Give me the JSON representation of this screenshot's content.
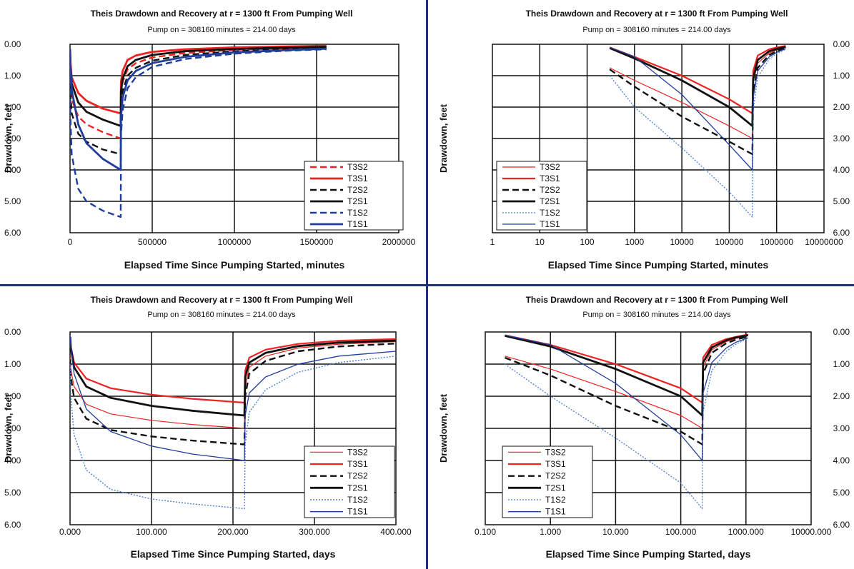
{
  "colors": {
    "red": "#ee2222",
    "black": "#111111",
    "blue": "#1f3d99",
    "lightblue": "#4a7fd8",
    "divider": "#1f2f78",
    "grid": "#111111"
  },
  "chart_data": [
    {
      "type": "line",
      "title": "Theis Drawdown and Recovery at r = 1300 ft From Pumping Well",
      "subtitle": "Pump on = 308160 minutes = 214.00 days",
      "xlabel": "Elapsed Time Since Pumping Started, minutes",
      "ylabel": "Drawdown, feet",
      "xscale": "linear",
      "xlim": [
        0,
        2000000
      ],
      "ylim": [
        0,
        6
      ],
      "y_inverted": true,
      "yaxis_side": "left",
      "xticks": [
        "0",
        "500000",
        "1000000",
        "1500000",
        "2000000"
      ],
      "yticks": [
        "0.00",
        "1.00",
        "2.00",
        "3.00",
        "4.00",
        "5.00",
        "6.00"
      ],
      "grid": true,
      "legend_position": "bottom-right",
      "series": [
        {
          "name": "T3S2",
          "color": "#ee2222",
          "dash": "dashed",
          "width": 2.4,
          "x": [
            300,
            2000,
            10000,
            50000,
            100000,
            200000,
            308160,
            310000,
            320000,
            350000,
            400000,
            500000,
            700000,
            1000000,
            1300000,
            1560000
          ],
          "y": [
            0.85,
            1.25,
            1.75,
            2.3,
            2.55,
            2.8,
            3.0,
            1.6,
            1.2,
            0.8,
            0.6,
            0.42,
            0.28,
            0.18,
            0.13,
            0.1
          ]
        },
        {
          "name": "T3S1",
          "color": "#ee2222",
          "dash": "solid",
          "width": 2.8,
          "x": [
            300,
            2000,
            10000,
            50000,
            100000,
            200000,
            308160,
            310000,
            320000,
            350000,
            400000,
            500000,
            700000,
            1000000,
            1300000,
            1560000
          ],
          "y": [
            0.2,
            0.55,
            1.05,
            1.55,
            1.8,
            2.05,
            2.2,
            1.2,
            0.85,
            0.5,
            0.36,
            0.24,
            0.16,
            0.1,
            0.07,
            0.05
          ]
        },
        {
          "name": "T2S2",
          "color": "#111111",
          "dash": "dashed",
          "width": 2.4,
          "x": [
            300,
            2000,
            10000,
            50000,
            100000,
            200000,
            308160,
            310000,
            320000,
            350000,
            400000,
            500000,
            700000,
            1000000,
            1300000,
            1560000
          ],
          "y": [
            0.9,
            1.5,
            2.2,
            2.85,
            3.1,
            3.35,
            3.5,
            2.0,
            1.5,
            1.0,
            0.75,
            0.52,
            0.34,
            0.22,
            0.16,
            0.12
          ]
        },
        {
          "name": "T2S1",
          "color": "#111111",
          "dash": "solid",
          "width": 2.8,
          "x": [
            300,
            2000,
            10000,
            50000,
            100000,
            200000,
            308160,
            310000,
            320000,
            350000,
            400000,
            500000,
            700000,
            1000000,
            1300000,
            1560000
          ],
          "y": [
            0.2,
            0.65,
            1.25,
            1.85,
            2.15,
            2.4,
            2.6,
            1.5,
            1.1,
            0.7,
            0.5,
            0.34,
            0.22,
            0.15,
            0.11,
            0.08
          ]
        },
        {
          "name": "T1S2",
          "color": "#1f3d99",
          "dash": "dashed",
          "width": 2.4,
          "x": [
            300,
            2000,
            10000,
            50000,
            100000,
            200000,
            308160,
            310000,
            320000,
            350000,
            400000,
            500000,
            700000,
            1000000,
            1300000,
            1560000
          ],
          "y": [
            1.1,
            2.3,
            3.5,
            4.6,
            5.0,
            5.3,
            5.5,
            2.9,
            2.1,
            1.4,
            1.05,
            0.72,
            0.47,
            0.3,
            0.21,
            0.16
          ]
        },
        {
          "name": "T1S1",
          "color": "#1f3d99",
          "dash": "solid",
          "width": 2.8,
          "x": [
            300,
            2000,
            10000,
            50000,
            100000,
            200000,
            308160,
            310000,
            320000,
            350000,
            400000,
            500000,
            700000,
            1000000,
            1300000,
            1560000
          ],
          "y": [
            0.15,
            0.65,
            1.45,
            2.55,
            3.15,
            3.65,
            4.0,
            2.3,
            1.7,
            1.15,
            0.85,
            0.6,
            0.4,
            0.26,
            0.19,
            0.14
          ]
        }
      ]
    },
    {
      "type": "line",
      "title": "Theis Drawdown and Recovery at r = 1300 ft From Pumping Well",
      "subtitle": "Pump on = 308160 minutes = 214.00 days",
      "xlabel": "Elapsed Time Since Pumping Started, minutes",
      "ylabel": "Drawdown, feet",
      "xscale": "log",
      "xlim": [
        1,
        10000000
      ],
      "ylim": [
        0,
        6
      ],
      "y_inverted": true,
      "yaxis_side": "right",
      "xticks": [
        "1",
        "10",
        "100",
        "1000",
        "10000",
        "100000",
        "1000000",
        "10000000"
      ],
      "yticks": [
        "0.00",
        "1.00",
        "2.00",
        "3.00",
        "4.00",
        "5.00",
        "6.00"
      ],
      "grid": true,
      "legend_position": "bottom-left",
      "series": [
        {
          "name": "T3S2",
          "color": "#ee2222",
          "dash": "solid",
          "width": 1.2,
          "x": [
            300,
            1000,
            10000,
            100000,
            308160,
            320000,
            400000,
            700000,
            1000000,
            1560000
          ],
          "y": [
            0.75,
            1.15,
            1.85,
            2.6,
            3.0,
            1.2,
            0.6,
            0.28,
            0.18,
            0.1
          ]
        },
        {
          "name": "T3S1",
          "color": "#ee2222",
          "dash": "solid",
          "width": 2.2,
          "x": [
            300,
            1000,
            10000,
            100000,
            308160,
            320000,
            400000,
            700000,
            1000000,
            1560000
          ],
          "y": [
            0.1,
            0.4,
            1.0,
            1.75,
            2.2,
            0.85,
            0.36,
            0.16,
            0.1,
            0.05
          ]
        },
        {
          "name": "T2S2",
          "color": "#111111",
          "dash": "dashed",
          "width": 2.4,
          "x": [
            300,
            1000,
            10000,
            100000,
            308160,
            320000,
            400000,
            700000,
            1000000,
            1560000
          ],
          "y": [
            0.8,
            1.35,
            2.3,
            3.1,
            3.5,
            1.5,
            0.75,
            0.34,
            0.22,
            0.12
          ]
        },
        {
          "name": "T2S1",
          "color": "#111111",
          "dash": "solid",
          "width": 2.8,
          "x": [
            300,
            1000,
            10000,
            100000,
            308160,
            320000,
            400000,
            700000,
            1000000,
            1560000
          ],
          "y": [
            0.12,
            0.45,
            1.15,
            2.0,
            2.6,
            1.1,
            0.5,
            0.22,
            0.15,
            0.08
          ]
        },
        {
          "name": "T1S2",
          "color": "#4a7fd8",
          "dash": "dotted",
          "width": 1.3,
          "x": [
            300,
            1000,
            10000,
            100000,
            308160,
            320000,
            400000,
            700000,
            1000000,
            1560000
          ],
          "y": [
            1.0,
            2.0,
            3.3,
            4.7,
            5.5,
            2.1,
            1.05,
            0.47,
            0.3,
            0.16
          ]
        },
        {
          "name": "T1S1",
          "color": "#1f3d99",
          "dash": "solid",
          "width": 1.3,
          "x": [
            300,
            1000,
            10000,
            100000,
            308160,
            320000,
            400000,
            700000,
            1000000,
            1560000
          ],
          "y": [
            0.1,
            0.4,
            1.6,
            3.2,
            4.0,
            1.7,
            0.85,
            0.4,
            0.26,
            0.14
          ]
        }
      ]
    },
    {
      "type": "line",
      "title": "Theis Drawdown and Recovery at r = 1300 ft From Pumping Well",
      "subtitle": "Pump on = 308160 minutes = 214.00 days",
      "xlabel": "Elapsed Time Since Pumping Started, days",
      "ylabel": "Drawdown, feet",
      "xscale": "linear",
      "xlim": [
        0,
        400
      ],
      "ylim": [
        0,
        6
      ],
      "y_inverted": true,
      "yaxis_side": "left",
      "xticks": [
        "0.000",
        "100.000",
        "200.000",
        "300.000",
        "400.000"
      ],
      "yticks": [
        "0.00",
        "1.00",
        "2.00",
        "3.00",
        "4.00",
        "5.00",
        "6.00"
      ],
      "grid": true,
      "legend_position": "bottom-right",
      "series": [
        {
          "name": "T3S2",
          "color": "#ee2222",
          "dash": "solid",
          "width": 1.2,
          "x": [
            0.2,
            1,
            5,
            20,
            50,
            100,
            150,
            214,
            215,
            220,
            240,
            280,
            330,
            400
          ],
          "y": [
            0.8,
            1.2,
            1.7,
            2.25,
            2.55,
            2.75,
            2.88,
            3.0,
            1.7,
            1.1,
            0.75,
            0.5,
            0.38,
            0.3
          ]
        },
        {
          "name": "T3S1",
          "color": "#ee2222",
          "dash": "solid",
          "width": 2.2,
          "x": [
            0.2,
            1,
            5,
            20,
            50,
            100,
            150,
            214,
            215,
            220,
            240,
            280,
            330,
            400
          ],
          "y": [
            0.15,
            0.45,
            0.95,
            1.45,
            1.75,
            1.95,
            2.08,
            2.2,
            1.2,
            0.8,
            0.55,
            0.37,
            0.27,
            0.22
          ]
        },
        {
          "name": "T2S2",
          "color": "#111111",
          "dash": "dashed",
          "width": 2.4,
          "x": [
            0.2,
            1,
            5,
            20,
            50,
            100,
            150,
            214,
            215,
            220,
            240,
            280,
            330,
            400
          ],
          "y": [
            0.85,
            1.4,
            2.05,
            2.7,
            3.05,
            3.25,
            3.38,
            3.5,
            2.0,
            1.3,
            0.9,
            0.6,
            0.45,
            0.36
          ]
        },
        {
          "name": "T2S1",
          "color": "#111111",
          "dash": "solid",
          "width": 2.8,
          "x": [
            0.2,
            1,
            5,
            20,
            50,
            100,
            150,
            214,
            215,
            220,
            240,
            280,
            330,
            400
          ],
          "y": [
            0.15,
            0.5,
            1.1,
            1.7,
            2.05,
            2.3,
            2.45,
            2.6,
            1.4,
            0.95,
            0.65,
            0.44,
            0.33,
            0.27
          ]
        },
        {
          "name": "T1S2",
          "color": "#4a7fd8",
          "dash": "dotted",
          "width": 1.4,
          "x": [
            0.2,
            1,
            5,
            20,
            50,
            100,
            150,
            214,
            215,
            220,
            240,
            280,
            330,
            400
          ],
          "y": [
            1.0,
            2.0,
            3.2,
            4.3,
            4.9,
            5.2,
            5.35,
            5.5,
            3.5,
            2.5,
            1.8,
            1.25,
            0.95,
            0.75
          ]
        },
        {
          "name": "T1S1",
          "color": "#1f3d99",
          "dash": "solid",
          "width": 1.3,
          "x": [
            0.2,
            1,
            5,
            20,
            50,
            100,
            150,
            214,
            215,
            220,
            240,
            280,
            330,
            400
          ],
          "y": [
            0.1,
            0.45,
            1.3,
            2.4,
            3.1,
            3.55,
            3.8,
            4.0,
            2.6,
            1.9,
            1.4,
            1.0,
            0.75,
            0.6
          ]
        }
      ]
    },
    {
      "type": "line",
      "title": "Theis Drawdown and Recovery at r = 1300 ft From Pumping Well",
      "subtitle": "Pump on = 308160 minutes = 214.00 days",
      "xlabel": "Elapsed Time Since Pumping Started, days",
      "ylabel": "Drawdown, feet",
      "xscale": "log",
      "xlim": [
        0.1,
        10000
      ],
      "ylim": [
        0,
        6
      ],
      "y_inverted": true,
      "yaxis_side": "right",
      "xticks": [
        "0.100",
        "1.000",
        "10.000",
        "100.000",
        "1000.000",
        "10000.000"
      ],
      "yticks": [
        "0.00",
        "1.00",
        "2.00",
        "3.00",
        "4.00",
        "5.00",
        "6.00"
      ],
      "grid": true,
      "legend_position": "bottom-left",
      "series": [
        {
          "name": "T3S2",
          "color": "#ee2222",
          "dash": "solid",
          "width": 1.2,
          "x": [
            0.2,
            1,
            10,
            100,
            214,
            220,
            300,
            500,
            700,
            1080
          ],
          "y": [
            0.75,
            1.15,
            1.85,
            2.6,
            3.0,
            1.1,
            0.55,
            0.3,
            0.2,
            0.12
          ]
        },
        {
          "name": "T3S1",
          "color": "#ee2222",
          "dash": "solid",
          "width": 2.2,
          "x": [
            0.2,
            1,
            10,
            100,
            214,
            220,
            300,
            500,
            700,
            1080
          ],
          "y": [
            0.1,
            0.4,
            1.0,
            1.75,
            2.2,
            0.8,
            0.4,
            0.22,
            0.15,
            0.08
          ]
        },
        {
          "name": "T2S2",
          "color": "#111111",
          "dash": "dashed",
          "width": 2.4,
          "x": [
            0.2,
            1,
            10,
            100,
            214,
            220,
            300,
            500,
            700,
            1080
          ],
          "y": [
            0.8,
            1.35,
            2.3,
            3.1,
            3.5,
            1.3,
            0.65,
            0.35,
            0.24,
            0.14
          ]
        },
        {
          "name": "T2S1",
          "color": "#111111",
          "dash": "solid",
          "width": 2.8,
          "x": [
            0.2,
            1,
            10,
            100,
            214,
            220,
            300,
            500,
            700,
            1080
          ],
          "y": [
            0.12,
            0.45,
            1.15,
            2.0,
            2.6,
            0.95,
            0.48,
            0.26,
            0.17,
            0.1
          ]
        },
        {
          "name": "T1S2",
          "color": "#4a7fd8",
          "dash": "dotted",
          "width": 1.3,
          "x": [
            0.2,
            1,
            10,
            100,
            214,
            220,
            300,
            500,
            700,
            1080
          ],
          "y": [
            1.0,
            2.0,
            3.3,
            4.7,
            5.5,
            2.5,
            1.2,
            0.6,
            0.38,
            0.2
          ]
        },
        {
          "name": "T1S1",
          "color": "#1f3d99",
          "dash": "solid",
          "width": 1.3,
          "x": [
            0.2,
            1,
            10,
            100,
            214,
            220,
            300,
            500,
            700,
            1080
          ],
          "y": [
            0.1,
            0.4,
            1.6,
            3.2,
            4.0,
            1.9,
            0.95,
            0.5,
            0.32,
            0.18
          ]
        }
      ]
    }
  ]
}
